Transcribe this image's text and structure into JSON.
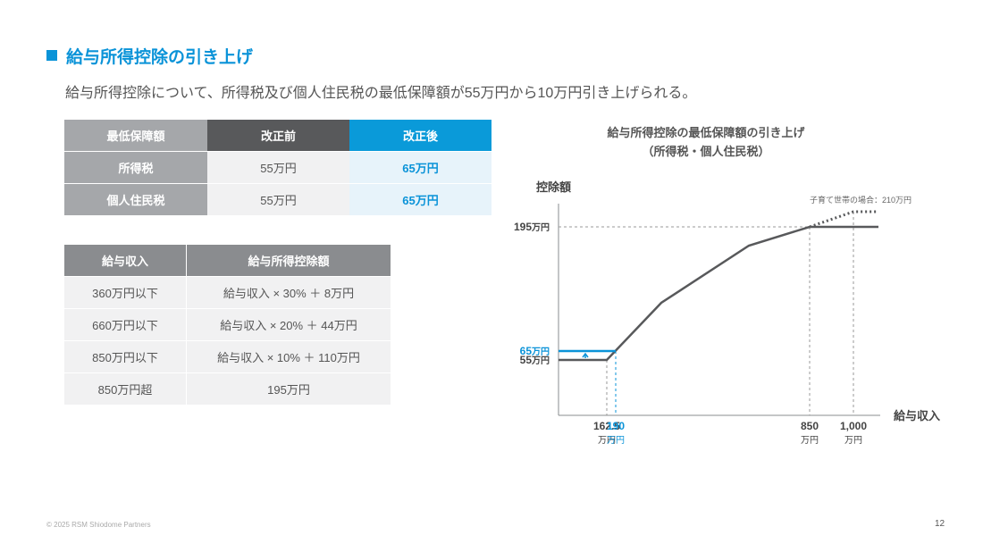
{
  "header": {
    "title": "給与所得控除の引き上げ",
    "subtitle": "給与所得控除について、所得税及び個人住民税の最低保障額が55万円から10万円引き上げられる。"
  },
  "table1": {
    "headers": [
      "最低保障額",
      "改正前",
      "改正後"
    ],
    "rows": [
      [
        "所得税",
        "55万円",
        "65万円"
      ],
      [
        "個人住民税",
        "55万円",
        "65万円"
      ]
    ]
  },
  "table2": {
    "headers": [
      "給与収入",
      "給与所得控除額"
    ],
    "rows": [
      [
        "360万円以下",
        "給与収入 × 30% ＋ 8万円"
      ],
      [
        "660万円以下",
        "給与収入 × 20% ＋ 44万円"
      ],
      [
        "850万円以下",
        "給与収入 × 10% ＋ 110万円"
      ],
      [
        "850万円超",
        "195万円"
      ]
    ]
  },
  "chart_data": {
    "type": "line",
    "title": "給与所得控除の最低保障額の引き上げ",
    "subtitle": "（所得税・個人住民税）",
    "ylabel": "控除額",
    "xlabel": "給与収入",
    "x_ticks": [
      {
        "value": "162.5",
        "unit": "万円",
        "highlight": false
      },
      {
        "value": "190",
        "unit": "万円",
        "highlight": true
      },
      {
        "value": "850",
        "unit": "万円",
        "highlight": false
      },
      {
        "value": "1,000",
        "unit": "万円",
        "highlight": false
      }
    ],
    "y_ticks": [
      {
        "value": "195",
        "unit": "万円",
        "highlight": false
      },
      {
        "value": "65",
        "unit": "万円",
        "highlight": true
      },
      {
        "value": "55",
        "unit": "万円",
        "highlight": false
      }
    ],
    "series": [
      {
        "points": [
          [
            0,
            55
          ],
          [
            162.5,
            55
          ],
          [
            360,
            116
          ],
          [
            660,
            176
          ],
          [
            850,
            195
          ],
          [
            1150,
            195
          ]
        ],
        "color": "#58595b"
      },
      {
        "points": [
          [
            0,
            65
          ],
          [
            190,
            65
          ]
        ],
        "color": "#0a93d8"
      },
      {
        "points": [
          [
            850,
            195
          ],
          [
            1000,
            210
          ],
          [
            1150,
            210
          ]
        ],
        "color": "#58595b",
        "dashed": true
      }
    ],
    "annotation": "子育て世帯の場合：210万円"
  },
  "footer": {
    "copyright": "© 2025 RSM Shiodome Partners",
    "page": "12"
  },
  "colors": {
    "accent": "#0a93d8",
    "dark": "#58595b"
  }
}
